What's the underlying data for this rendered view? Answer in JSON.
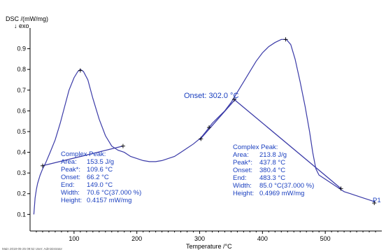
{
  "chart_data": {
    "type": "line",
    "ylabel": "DSC /(mW/mg)",
    "ylabel_sub": "↓ exo",
    "xlabel": "Temperature /°C",
    "xlim": [
      30,
      590
    ],
    "ylim": [
      0.02,
      1.0
    ],
    "x_ticks": [
      "100",
      "200",
      "300",
      "400",
      "500"
    ],
    "y_ticks": [
      "0.1",
      "0.2",
      "0.3",
      "0.4",
      "0.5",
      "0.6",
      "0.7",
      "0.8",
      "0.9"
    ],
    "grid": false,
    "series": [
      {
        "color": "#3b3ba8",
        "points": [
          [
            36,
            0.1
          ],
          [
            38,
            0.18
          ],
          [
            40,
            0.22
          ],
          [
            42,
            0.25
          ],
          [
            46,
            0.29
          ],
          [
            50,
            0.32
          ],
          [
            55,
            0.35
          ],
          [
            62,
            0.4
          ],
          [
            70,
            0.46
          ],
          [
            78,
            0.54
          ],
          [
            85,
            0.62
          ],
          [
            92,
            0.7
          ],
          [
            100,
            0.76
          ],
          [
            106,
            0.79
          ],
          [
            110,
            0.8
          ],
          [
            115,
            0.79
          ],
          [
            122,
            0.75
          ],
          [
            130,
            0.66
          ],
          [
            140,
            0.56
          ],
          [
            150,
            0.48
          ],
          [
            160,
            0.43
          ],
          [
            170,
            0.41
          ],
          [
            180,
            0.4
          ],
          [
            190,
            0.38
          ],
          [
            200,
            0.37
          ],
          [
            210,
            0.36
          ],
          [
            220,
            0.355
          ],
          [
            230,
            0.355
          ],
          [
            240,
            0.36
          ],
          [
            250,
            0.37
          ],
          [
            260,
            0.38
          ],
          [
            270,
            0.4
          ],
          [
            280,
            0.42
          ],
          [
            290,
            0.44
          ],
          [
            302,
            0.47
          ],
          [
            310,
            0.5
          ],
          [
            320,
            0.54
          ],
          [
            330,
            0.57
          ],
          [
            340,
            0.6
          ],
          [
            350,
            0.64
          ],
          [
            360,
            0.69
          ],
          [
            370,
            0.74
          ],
          [
            380,
            0.79
          ],
          [
            390,
            0.84
          ],
          [
            400,
            0.88
          ],
          [
            410,
            0.91
          ],
          [
            420,
            0.93
          ],
          [
            430,
            0.945
          ],
          [
            438,
            0.945
          ],
          [
            445,
            0.92
          ],
          [
            452,
            0.85
          ],
          [
            460,
            0.74
          ],
          [
            468,
            0.62
          ],
          [
            475,
            0.5
          ],
          [
            480,
            0.4
          ],
          [
            485,
            0.32
          ],
          [
            490,
            0.29
          ],
          [
            500,
            0.27
          ],
          [
            510,
            0.25
          ],
          [
            520,
            0.23
          ],
          [
            530,
            0.21
          ],
          [
            540,
            0.2
          ],
          [
            550,
            0.19
          ],
          [
            560,
            0.18
          ],
          [
            570,
            0.17
          ],
          [
            580,
            0.16
          ]
        ]
      }
    ],
    "baselines": [
      {
        "from": [
          50,
          0.335
        ],
        "to": [
          178,
          0.43
        ]
      },
      {
        "from": [
          355,
          0.655
        ],
        "to": [
          525,
          0.225
        ]
      },
      {
        "from": [
          300,
          0.46
        ],
        "to": [
          358,
          0.66
        ]
      }
    ],
    "markers": [
      [
        50,
        0.335
      ],
      [
        110,
        0.795
      ],
      [
        178,
        0.43
      ],
      [
        302,
        0.465
      ],
      [
        315,
        0.52
      ],
      [
        355,
        0.655
      ],
      [
        437,
        0.945
      ],
      [
        525,
        0.225
      ],
      [
        578,
        0.155
      ]
    ],
    "annotations": {
      "onset_label": "Onset: 302.0 °C",
      "end_label": "P1",
      "peak1": {
        "title": "Complex Peak:",
        "rows": [
          {
            "label": "Area:",
            "value": "153.5 J/g"
          },
          {
            "label": "Peak*:",
            "value": "109.6 °C"
          },
          {
            "label": "Onset:",
            "value": "66.2 °C"
          },
          {
            "label": "End:",
            "value": "149.0 °C"
          },
          {
            "label": "Width:",
            "value": "70.6 °C(37.000 %)"
          },
          {
            "label": "Height:",
            "value": "0.4157 mW/mg"
          }
        ]
      },
      "peak2": {
        "title": "Complex Peak:",
        "rows": [
          {
            "label": "Area:",
            "value": "213.8 J/g"
          },
          {
            "label": "Peak*:",
            "value": "437.8 °C"
          },
          {
            "label": "Onset:",
            "value": "380.4 °C"
          },
          {
            "label": "End:",
            "value": "483.3 °C"
          },
          {
            "label": "Width:",
            "value": "85.0 °C(37.000 %)"
          },
          {
            "label": "Height:",
            "value": "0.4969 mW/mg"
          }
        ]
      }
    },
    "footer_text": "Main 2018-05-25 09:52 User: Administrator"
  },
  "colors": {
    "curve": "#3b3ba8",
    "annotation": "#1a3fbf",
    "axis": "#000000"
  }
}
